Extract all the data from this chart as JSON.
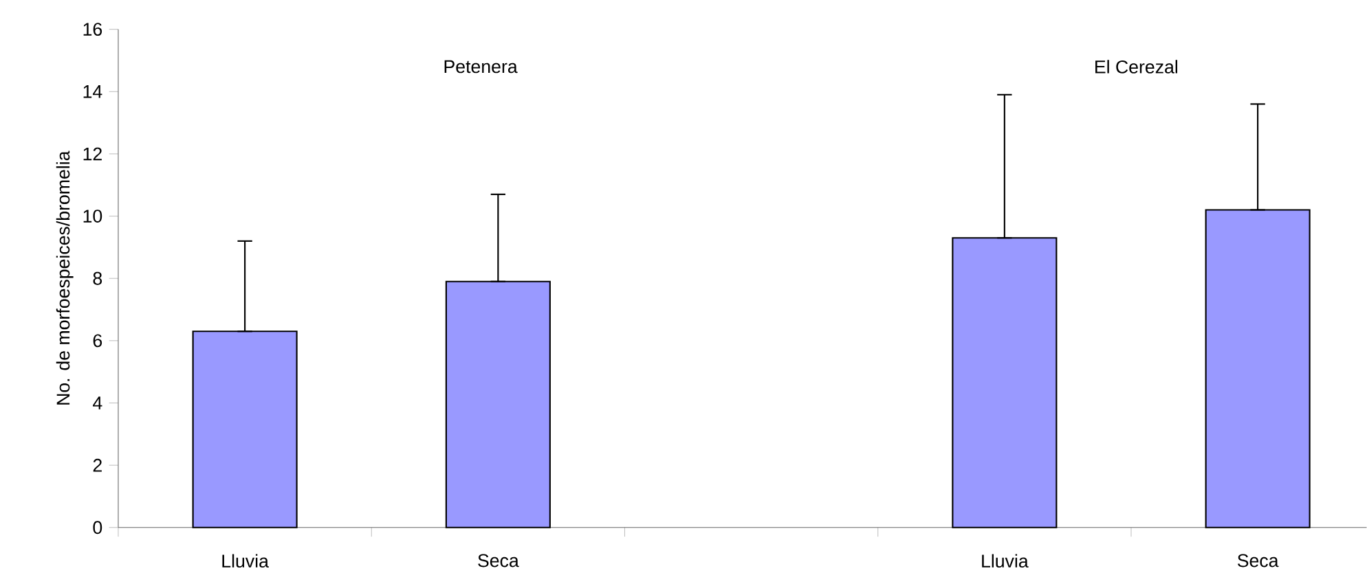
{
  "chart_data": {
    "type": "bar",
    "ylabel": "No. de morfoespeices/bromelia",
    "categories": [
      "Lluvia",
      "Seca",
      null,
      "Lluvia",
      "Seca"
    ],
    "values": [
      6.3,
      7.9,
      null,
      9.3,
      10.2
    ],
    "errors": [
      [
        6.3,
        9.2
      ],
      [
        7.9,
        10.7
      ],
      null,
      [
        9.3,
        13.9
      ],
      [
        10.2,
        13.6
      ]
    ],
    "color": "#9999ff",
    "ylim": [
      0,
      16
    ],
    "yticks": [
      0,
      2,
      4,
      6,
      8,
      10,
      12,
      14,
      16
    ],
    "annotations": [
      "Petenera",
      "El Cerezal"
    ],
    "grid": false
  }
}
